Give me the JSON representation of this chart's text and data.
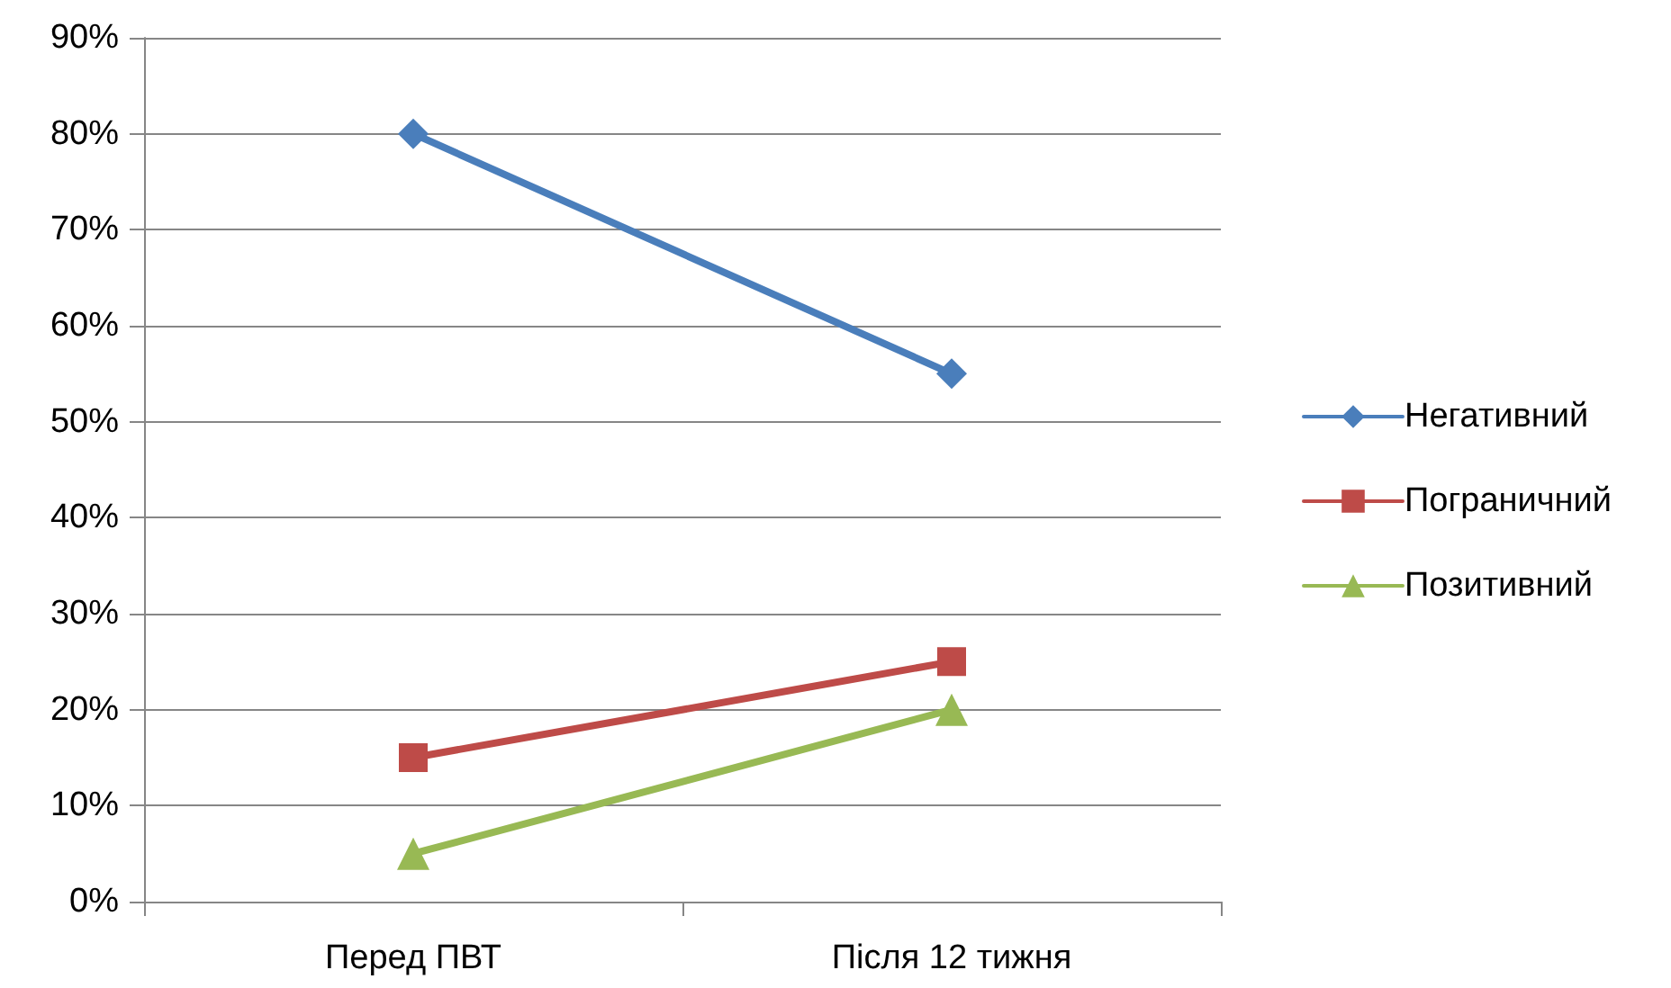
{
  "chart_data": {
    "type": "line",
    "categories": [
      "Перед ПВТ",
      "Після 12 тижня"
    ],
    "series": [
      {
        "name": "Негативний",
        "color": "#4a7ebb",
        "marker": "diamond",
        "values": [
          80,
          55
        ]
      },
      {
        "name": "Пограничний",
        "color": "#be4b48",
        "marker": "square",
        "values": [
          15,
          25
        ]
      },
      {
        "name": "Позитивний",
        "color": "#98b954",
        "marker": "triangle",
        "values": [
          5,
          20
        ]
      }
    ],
    "ylim": [
      0,
      90
    ],
    "yticks": [
      {
        "value": 0,
        "label": "0%"
      },
      {
        "value": 10,
        "label": "10%"
      },
      {
        "value": 20,
        "label": "20%"
      },
      {
        "value": 30,
        "label": "30%"
      },
      {
        "value": 40,
        "label": "40%"
      },
      {
        "value": 50,
        "label": "50%"
      },
      {
        "value": 60,
        "label": "60%"
      },
      {
        "value": 70,
        "label": "70%"
      },
      {
        "value": 80,
        "label": "80%"
      },
      {
        "value": 90,
        "label": "90%"
      }
    ],
    "grid": "y",
    "legend": "right",
    "line_style": "solid"
  }
}
